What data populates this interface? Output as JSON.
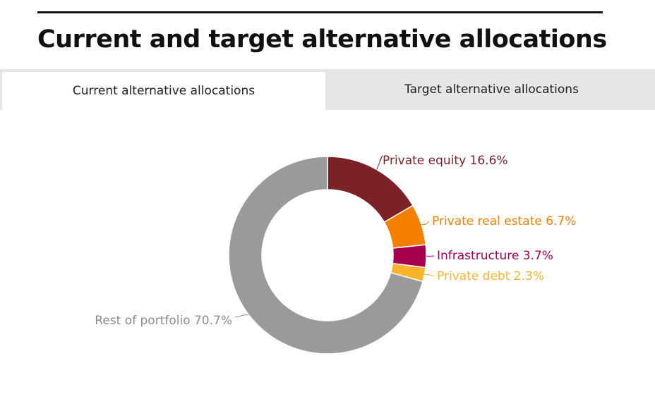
{
  "header": {
    "title": "Current and target alternative allocations"
  },
  "tabs": [
    {
      "label": "Current alternative allocations",
      "active": true
    },
    {
      "label": "Target alternative allocations",
      "active": false
    }
  ],
  "chart_data": {
    "type": "pie",
    "variant": "donut",
    "title": "",
    "slices": [
      {
        "label": "Private equity 16.6%",
        "name": "Private equity",
        "value": 16.6,
        "color": "#7b2226"
      },
      {
        "label": "Private real estate 6.7%",
        "name": "Private real estate",
        "value": 6.7,
        "color": "#f58000"
      },
      {
        "label": "Infrastructure 3.7%",
        "name": "Infrastructure",
        "value": 3.7,
        "color": "#a5004f"
      },
      {
        "label": "Private debt 2.3%",
        "name": "Private debt",
        "value": 2.3,
        "color": "#fbb32b"
      },
      {
        "label": "Rest of portfolio 70.7%",
        "name": "Rest of portfolio",
        "value": 70.7,
        "color": "#9a9a9a"
      }
    ],
    "label_colors": [
      "#7b2226",
      "#f58000",
      "#a5004f",
      "#fbb32b",
      "#8c8c8c"
    ]
  }
}
